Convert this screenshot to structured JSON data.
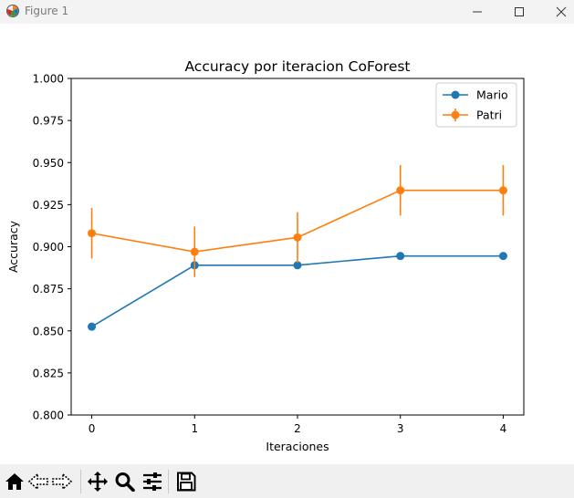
{
  "window": {
    "title": "Figure 1"
  },
  "chart_data": {
    "type": "line",
    "title": "Accuracy por iteracion CoForest",
    "xlabel": "Iteraciones",
    "ylabel": "Accuracy",
    "xlim": [
      -0.2,
      4.2
    ],
    "ylim": [
      0.8,
      1.0
    ],
    "xticks": [
      "0",
      "1",
      "2",
      "3",
      "4"
    ],
    "yticks": [
      "0.800",
      "0.825",
      "0.850",
      "0.875",
      "0.900",
      "0.925",
      "0.950",
      "0.975",
      "1.000"
    ],
    "x": [
      0,
      1,
      2,
      3,
      4
    ],
    "series": [
      {
        "name": "Mario",
        "color": "#1f77b4",
        "values": [
          0.8525,
          0.889,
          0.889,
          0.8945,
          0.8945
        ]
      },
      {
        "name": "Patri",
        "color": "#ff7f0e",
        "values": [
          0.908,
          0.897,
          0.9055,
          0.9335,
          0.9335
        ],
        "errors": [
          0.015,
          0.015,
          0.015,
          0.015,
          0.015
        ]
      }
    ],
    "legend": "top-right",
    "grid": false
  },
  "toolbar": {
    "icons": [
      "home-icon",
      "back-icon",
      "forward-icon",
      "pan-icon",
      "zoom-icon",
      "configure-subplots-icon",
      "save-icon"
    ]
  }
}
